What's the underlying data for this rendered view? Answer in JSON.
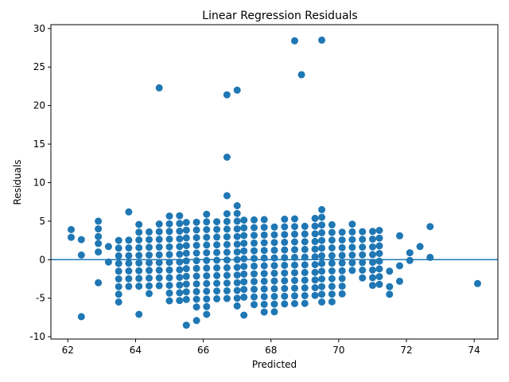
{
  "chart_data": {
    "type": "scatter",
    "title": "Linear Regression Residuals",
    "xlabel": "Predicted",
    "ylabel": "Residuals",
    "xlim": [
      61.5,
      74.7
    ],
    "ylim": [
      -10.3,
      30.5
    ],
    "xticks": [
      62,
      64,
      66,
      68,
      70,
      72,
      74
    ],
    "yticks": [
      -10,
      -5,
      0,
      5,
      10,
      15,
      20,
      25,
      30
    ],
    "reference_line_y": 0,
    "marker_color": "#1f77b4",
    "line_color": "#1f77b4",
    "grid": false,
    "legend": "none",
    "outliers": [
      {
        "x": 62.1,
        "y": 3.9
      },
      {
        "x": 62.1,
        "y": 2.9
      },
      {
        "x": 62.4,
        "y": 2.6
      },
      {
        "x": 62.4,
        "y": 0.6
      },
      {
        "x": 62.4,
        "y": -7.4
      },
      {
        "x": 62.9,
        "y": 5.0
      },
      {
        "x": 62.9,
        "y": 4.0
      },
      {
        "x": 62.9,
        "y": 3.0
      },
      {
        "x": 62.9,
        "y": 2.1
      },
      {
        "x": 62.9,
        "y": 1.0
      },
      {
        "x": 62.9,
        "y": -3.0
      },
      {
        "x": 63.2,
        "y": 1.7
      },
      {
        "x": 63.2,
        "y": -0.3
      },
      {
        "x": 63.8,
        "y": 6.2
      },
      {
        "x": 64.7,
        "y": 22.3
      },
      {
        "x": 66.7,
        "y": 21.4
      },
      {
        "x": 67.0,
        "y": 22.0
      },
      {
        "x": 68.7,
        "y": 28.4
      },
      {
        "x": 69.5,
        "y": 28.5
      },
      {
        "x": 68.9,
        "y": 24.0
      },
      {
        "x": 66.7,
        "y": 13.3
      },
      {
        "x": 66.7,
        "y": 8.3
      },
      {
        "x": 67.0,
        "y": 7.0
      },
      {
        "x": 65.5,
        "y": -8.5
      },
      {
        "x": 65.8,
        "y": -7.9
      },
      {
        "x": 64.1,
        "y": -7.1
      },
      {
        "x": 67.2,
        "y": -7.2
      },
      {
        "x": 72.1,
        "y": 0.9
      },
      {
        "x": 72.1,
        "y": -0.1
      },
      {
        "x": 72.4,
        "y": 1.7
      },
      {
        "x": 72.7,
        "y": 4.3
      },
      {
        "x": 72.7,
        "y": 0.3
      },
      {
        "x": 71.8,
        "y": 3.1
      },
      {
        "x": 71.8,
        "y": -0.8
      },
      {
        "x": 71.8,
        "y": -2.8
      },
      {
        "x": 71.5,
        "y": -3.5
      },
      {
        "x": 71.5,
        "y": -4.5
      },
      {
        "x": 71.5,
        "y": -1.5
      },
      {
        "x": 74.1,
        "y": -3.1
      }
    ],
    "dense_grid": {
      "comment_free": true,
      "columns": [
        {
          "x": 63.5,
          "ymin": -5.5,
          "ymax": 3.4
        },
        {
          "x": 63.8,
          "ymin": -3.8,
          "ymax": 3.1
        },
        {
          "x": 64.1,
          "ymin": -4.1,
          "ymax": 5.0
        },
        {
          "x": 64.4,
          "ymin": -4.4,
          "ymax": 3.6
        },
        {
          "x": 64.7,
          "ymin": -3.7,
          "ymax": 5.4
        },
        {
          "x": 65.0,
          "ymin": -6.0,
          "ymax": 6.0
        },
        {
          "x": 65.3,
          "ymin": -5.3,
          "ymax": 5.8
        },
        {
          "x": 65.5,
          "ymin": -5.5,
          "ymax": 5.5
        },
        {
          "x": 65.8,
          "ymin": -6.8,
          "ymax": 5.2
        },
        {
          "x": 66.1,
          "ymin": -7.1,
          "ymax": 5.9
        },
        {
          "x": 66.4,
          "ymin": -5.4,
          "ymax": 5.6
        },
        {
          "x": 66.7,
          "ymin": -5.7,
          "ymax": 6.3
        },
        {
          "x": 67.0,
          "ymin": -6.0,
          "ymax": 6.0
        },
        {
          "x": 67.2,
          "ymin": -5.2,
          "ymax": 5.8
        },
        {
          "x": 67.5,
          "ymin": -6.5,
          "ymax": 5.5
        },
        {
          "x": 67.8,
          "ymin": -6.8,
          "ymax": 5.2
        },
        {
          "x": 68.1,
          "ymin": -7.1,
          "ymax": 5.0
        },
        {
          "x": 68.4,
          "ymin": -6.4,
          "ymax": 5.6
        },
        {
          "x": 68.7,
          "ymin": -5.7,
          "ymax": 5.3
        },
        {
          "x": 69.0,
          "ymin": -6.0,
          "ymax": 5.0
        },
        {
          "x": 69.3,
          "ymin": -5.3,
          "ymax": 5.7
        },
        {
          "x": 69.5,
          "ymin": -5.5,
          "ymax": 6.5
        },
        {
          "x": 69.8,
          "ymin": -5.8,
          "ymax": 5.2
        },
        {
          "x": 70.1,
          "ymin": -5.1,
          "ymax": 3.9
        },
        {
          "x": 70.4,
          "ymin": -1.4,
          "ymax": 4.6
        },
        {
          "x": 70.7,
          "ymin": -2.7,
          "ymax": 4.3
        },
        {
          "x": 71.0,
          "ymin": -4.0,
          "ymax": 4.0
        },
        {
          "x": 71.2,
          "ymin": -3.2,
          "ymax": 3.8
        }
      ]
    }
  }
}
